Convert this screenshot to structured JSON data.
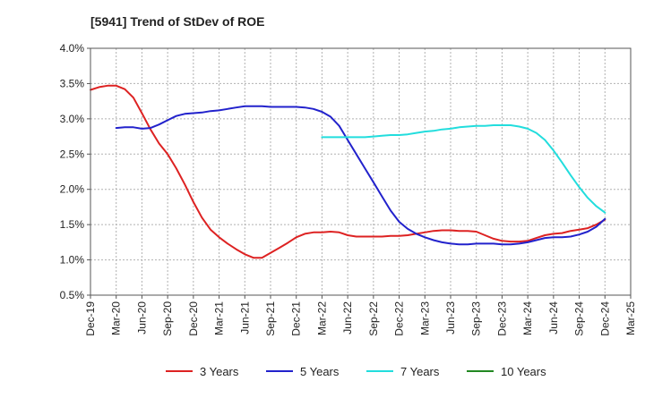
{
  "chart_data": {
    "type": "line",
    "title": "[5941]  Trend of StDev of ROE",
    "xlabel": "",
    "ylabel": "",
    "ylim": [
      0.5,
      4.0
    ],
    "y_ticks": [
      0.5,
      1.0,
      1.5,
      2.0,
      2.5,
      3.0,
      3.5,
      4.0
    ],
    "y_tick_labels": [
      "0.5%",
      "1.0%",
      "1.5%",
      "2.0%",
      "2.5%",
      "3.0%",
      "3.5%",
      "4.0%"
    ],
    "x_tick_labels": [
      "Dec-19",
      "Mar-20",
      "Jun-20",
      "Sep-20",
      "Dec-20",
      "Mar-21",
      "Jun-21",
      "Sep-21",
      "Dec-21",
      "Mar-22",
      "Jun-22",
      "Sep-22",
      "Dec-22",
      "Mar-23",
      "Jun-23",
      "Sep-23",
      "Dec-23",
      "Mar-24",
      "Jun-24",
      "Sep-24",
      "Dec-24",
      "Mar-25"
    ],
    "grid": true,
    "legend_position": "bottom",
    "series": [
      {
        "name": "3 Years",
        "color": "#dd2222",
        "x": [
          "Dec-19",
          "Jan-20",
          "Feb-20",
          "Mar-20",
          "Apr-20",
          "May-20",
          "Jun-20",
          "Jul-20",
          "Aug-20",
          "Sep-20",
          "Oct-20",
          "Nov-20",
          "Dec-20",
          "Jan-21",
          "Feb-21",
          "Mar-21",
          "Apr-21",
          "May-21",
          "Jun-21",
          "Jul-21",
          "Aug-21",
          "Sep-21",
          "Oct-21",
          "Nov-21",
          "Dec-21",
          "Jan-22",
          "Feb-22",
          "Mar-22",
          "Apr-22",
          "May-22",
          "Jun-22",
          "Jul-22",
          "Aug-22",
          "Sep-22",
          "Oct-22",
          "Nov-22",
          "Dec-22",
          "Jan-23",
          "Feb-23",
          "Mar-23",
          "Apr-23",
          "May-23",
          "Jun-23",
          "Jul-23",
          "Aug-23",
          "Sep-23",
          "Oct-23",
          "Nov-23",
          "Dec-23",
          "Jan-24",
          "Feb-24",
          "Mar-24",
          "Apr-24",
          "May-24",
          "Jun-24",
          "Jul-24",
          "Aug-24",
          "Sep-24",
          "Oct-24",
          "Nov-24",
          "Dec-24"
        ],
        "values": [
          3.41,
          3.45,
          3.47,
          3.47,
          3.42,
          3.3,
          3.08,
          2.85,
          2.65,
          2.5,
          2.3,
          2.07,
          1.82,
          1.6,
          1.43,
          1.32,
          1.23,
          1.15,
          1.08,
          1.03,
          1.03,
          1.1,
          1.17,
          1.24,
          1.32,
          1.37,
          1.39,
          1.39,
          1.4,
          1.39,
          1.35,
          1.33,
          1.33,
          1.33,
          1.33,
          1.34,
          1.34,
          1.35,
          1.37,
          1.39,
          1.41,
          1.42,
          1.42,
          1.41,
          1.41,
          1.4,
          1.35,
          1.3,
          1.27,
          1.26,
          1.26,
          1.27,
          1.31,
          1.35,
          1.37,
          1.38,
          1.41,
          1.43,
          1.45,
          1.5,
          1.57
        ]
      },
      {
        "name": "5 Years",
        "color": "#2222cc",
        "x": [
          "Mar-20",
          "Apr-20",
          "May-20",
          "Jun-20",
          "Jul-20",
          "Aug-20",
          "Sep-20",
          "Oct-20",
          "Nov-20",
          "Dec-20",
          "Jan-21",
          "Feb-21",
          "Mar-21",
          "Apr-21",
          "May-21",
          "Jun-21",
          "Jul-21",
          "Aug-21",
          "Sep-21",
          "Oct-21",
          "Nov-21",
          "Dec-21",
          "Jan-22",
          "Feb-22",
          "Mar-22",
          "Apr-22",
          "May-22",
          "Jun-22",
          "Jul-22",
          "Aug-22",
          "Sep-22",
          "Oct-22",
          "Nov-22",
          "Dec-22",
          "Jan-23",
          "Feb-23",
          "Mar-23",
          "Apr-23",
          "May-23",
          "Jun-23",
          "Jul-23",
          "Aug-23",
          "Sep-23",
          "Oct-23",
          "Nov-23",
          "Dec-23",
          "Jan-24",
          "Feb-24",
          "Mar-24",
          "Apr-24",
          "May-24",
          "Jun-24",
          "Jul-24",
          "Aug-24",
          "Sep-24",
          "Oct-24",
          "Nov-24",
          "Dec-24"
        ],
        "values": [
          2.87,
          2.88,
          2.88,
          2.86,
          2.87,
          2.92,
          2.98,
          3.04,
          3.07,
          3.08,
          3.09,
          3.11,
          3.12,
          3.14,
          3.16,
          3.18,
          3.18,
          3.18,
          3.17,
          3.17,
          3.17,
          3.17,
          3.16,
          3.14,
          3.1,
          3.03,
          2.9,
          2.7,
          2.5,
          2.3,
          2.1,
          1.9,
          1.7,
          1.54,
          1.44,
          1.37,
          1.32,
          1.28,
          1.25,
          1.23,
          1.22,
          1.22,
          1.23,
          1.23,
          1.23,
          1.22,
          1.22,
          1.23,
          1.25,
          1.28,
          1.31,
          1.32,
          1.32,
          1.33,
          1.36,
          1.4,
          1.47,
          1.58
        ]
      },
      {
        "name": "7 Years",
        "color": "#22dddd",
        "x": [
          "Mar-22",
          "Apr-22",
          "May-22",
          "Jun-22",
          "Jul-22",
          "Aug-22",
          "Sep-22",
          "Oct-22",
          "Nov-22",
          "Dec-22",
          "Jan-23",
          "Feb-23",
          "Mar-23",
          "Apr-23",
          "May-23",
          "Jun-23",
          "Jul-23",
          "Aug-23",
          "Sep-23",
          "Oct-23",
          "Nov-23",
          "Dec-23",
          "Jan-24",
          "Feb-24",
          "Mar-24",
          "Apr-24",
          "May-24",
          "Jun-24",
          "Jul-24",
          "Aug-24",
          "Sep-24",
          "Oct-24",
          "Nov-24",
          "Dec-24"
        ],
        "values": [
          2.74,
          2.74,
          2.74,
          2.74,
          2.74,
          2.74,
          2.75,
          2.76,
          2.77,
          2.77,
          2.78,
          2.8,
          2.82,
          2.83,
          2.85,
          2.86,
          2.88,
          2.89,
          2.9,
          2.9,
          2.91,
          2.91,
          2.91,
          2.89,
          2.86,
          2.8,
          2.7,
          2.55,
          2.38,
          2.2,
          2.03,
          1.88,
          1.76,
          1.67
        ]
      },
      {
        "name": "10 Years",
        "color": "#228822",
        "x": [],
        "values": []
      }
    ]
  }
}
